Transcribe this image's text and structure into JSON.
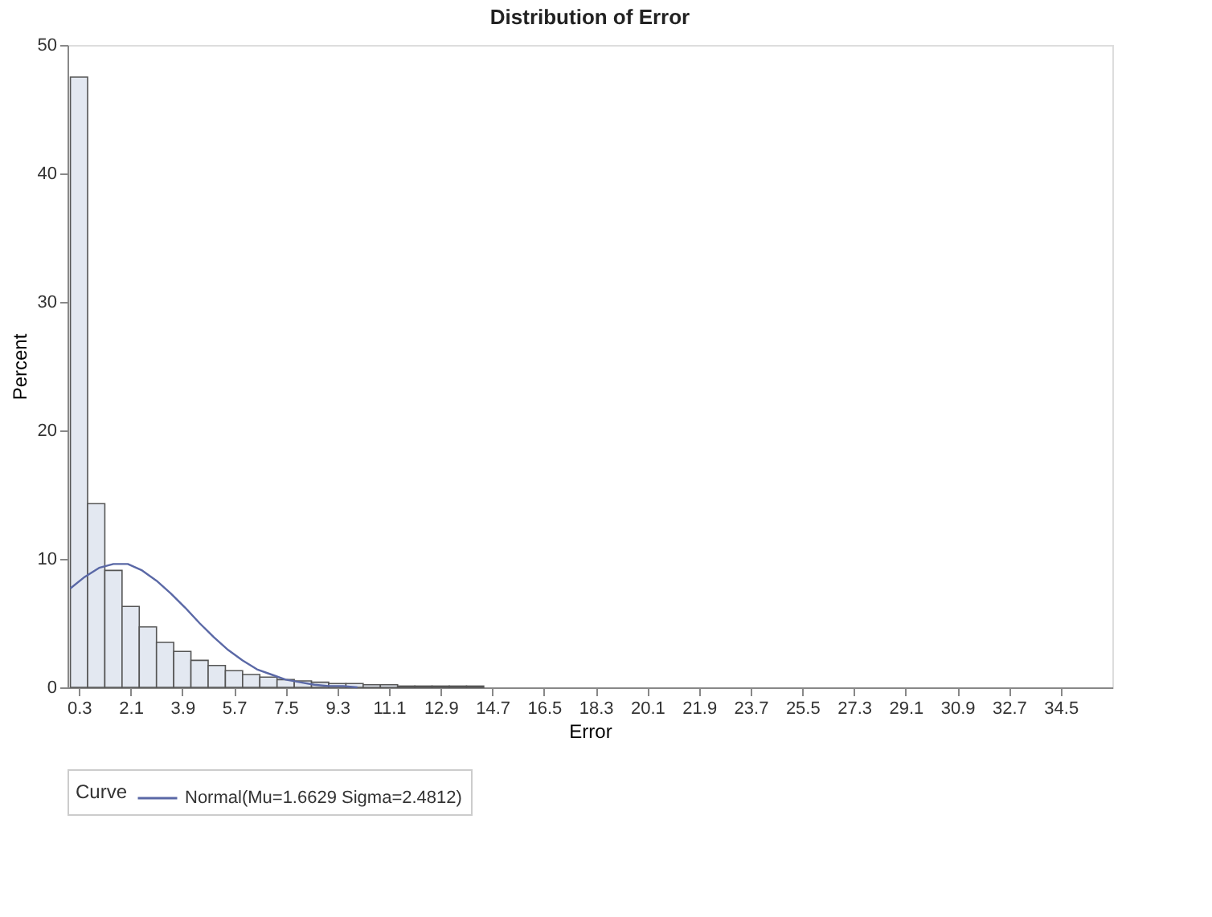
{
  "chart_data": {
    "type": "histogram",
    "title": "Distribution of Error",
    "xlabel": "Error",
    "ylabel": "Percent",
    "legend_title": "Curve",
    "bins": [
      0,
      0.6,
      1.2,
      1.8,
      2.4,
      3.0,
      3.6,
      4.2,
      4.8,
      5.4,
      6.0,
      6.6,
      7.2,
      7.8,
      8.4,
      9.0,
      9.6,
      10.2,
      10.8,
      11.4,
      12.0,
      12.6,
      13.2,
      13.8,
      14.4
    ],
    "values": [
      47.5,
      14.3,
      9.1,
      6.3,
      4.7,
      3.5,
      2.8,
      2.1,
      1.7,
      1.3,
      1.0,
      0.8,
      0.6,
      0.5,
      0.4,
      0.3,
      0.3,
      0.2,
      0.2,
      0.1,
      0.1,
      0.1,
      0.1,
      0.1
    ],
    "color": "#e3e8f1",
    "series": [
      {
        "type": "line",
        "name": "Normal(Mu=1.6629 Sigma=2.4812)",
        "color": "#5a68a6",
        "x": [
          0,
          0.5,
          1,
          1.5,
          2,
          2.5,
          3,
          3.5,
          4,
          4.5,
          5,
          5.5,
          6,
          6.5,
          7,
          7.5,
          8,
          8.5,
          9,
          9.5,
          10
        ],
        "values": [
          7.7,
          8.6,
          9.3,
          9.6,
          9.6,
          9.1,
          8.3,
          7.3,
          6.2,
          5.0,
          3.9,
          2.9,
          2.1,
          1.4,
          1.0,
          0.6,
          0.4,
          0.2,
          0.1,
          0.1,
          0.0
        ]
      }
    ],
    "xlim": [
      -0.1,
      36.3
    ],
    "xticks": [
      0.3,
      2.1,
      3.9,
      5.7,
      7.5,
      9.3,
      11.1,
      12.9,
      14.7,
      16.5,
      18.3,
      20.1,
      21.9,
      23.7,
      25.5,
      27.3,
      29.1,
      30.9,
      32.7,
      34.5
    ],
    "ylim": [
      0,
      50
    ],
    "yticks": [
      0,
      10,
      20,
      30,
      40,
      50
    ],
    "grid": false,
    "legend": "bottom"
  }
}
